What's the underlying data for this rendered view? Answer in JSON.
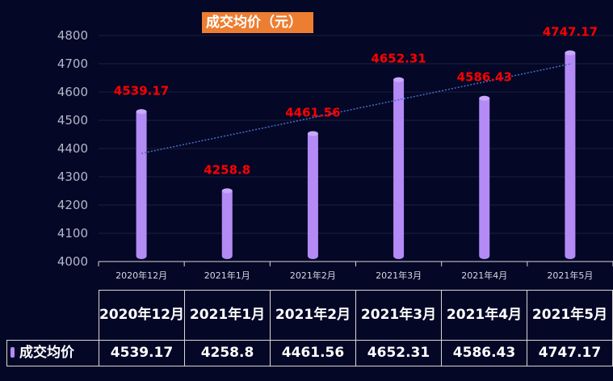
{
  "chart_data": {
    "type": "bar",
    "title": "成交均价（元）",
    "categories": [
      "2020年12月",
      "2021年1月",
      "2021年2月",
      "2021年3月",
      "2021年4月",
      "2021年5月"
    ],
    "table_headers": [
      "2020年12月",
      "2021年1月",
      "2021年2月",
      "2021年3月",
      "2021年4月",
      "2021年5月"
    ],
    "series": [
      {
        "name": "成交均价",
        "values": [
          4539.17,
          4258.8,
          4461.56,
          4652.31,
          4586.43,
          4747.17
        ],
        "labels": [
          "4539.17",
          "4258.8",
          "4461.56",
          "4652.31",
          "4586.43",
          "4747.17"
        ]
      }
    ],
    "trendline": {
      "type": "linear",
      "style": "dotted"
    },
    "ylim": [
      4000,
      4800
    ],
    "yticks": [
      "4000",
      "4100",
      "4200",
      "4300",
      "4400",
      "4500",
      "4600",
      "4700",
      "4800"
    ],
    "data_table": true,
    "colors": {
      "background": "#040726",
      "bar": "#b48af5",
      "bar_top": "#c9a8fb",
      "data_label": "#ff0000",
      "trendline": "#4472c4",
      "title_bg": "#ed7d31",
      "gridline": "#1c2040"
    }
  }
}
